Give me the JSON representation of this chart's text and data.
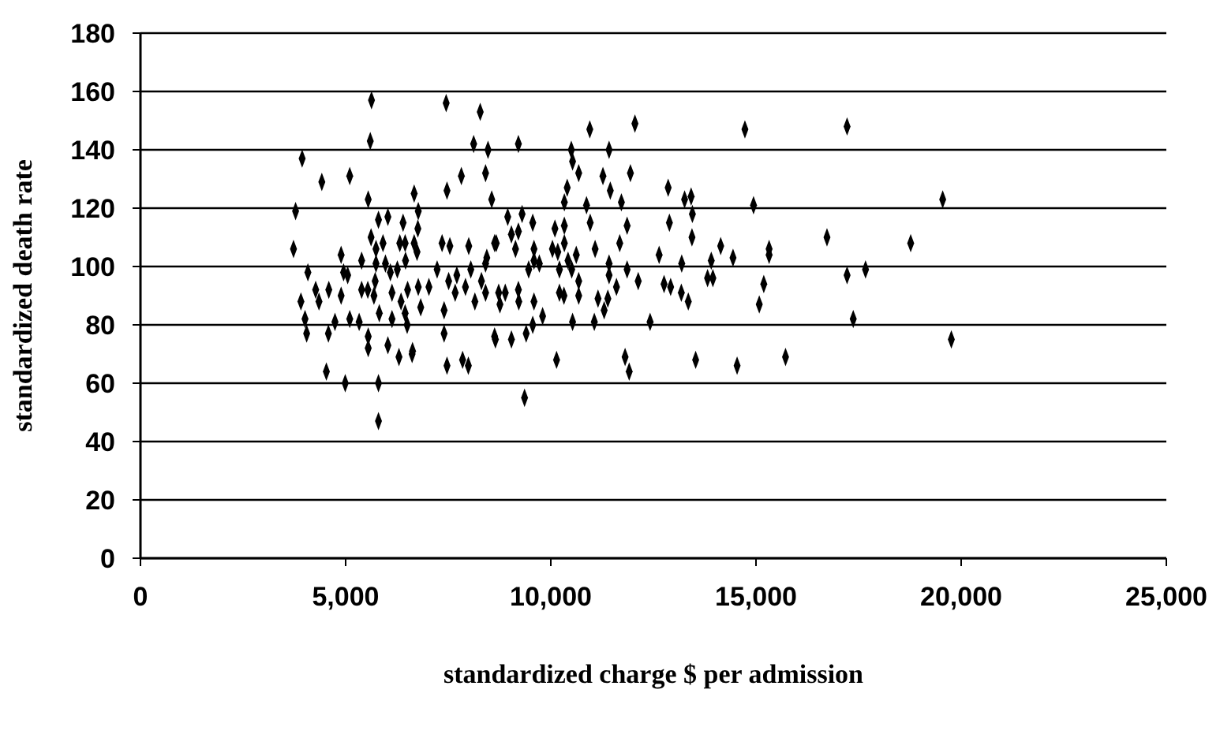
{
  "chart_data": {
    "type": "scatter",
    "xlabel": "standardized charge $ per admission",
    "ylabel": "standardized death rate",
    "xlim": [
      0,
      25000
    ],
    "ylim": [
      0,
      180
    ],
    "xticks": [
      0,
      {
        "value": 5000,
        "label": "5,000"
      },
      {
        "value": 10000,
        "label": "10,000"
      },
      {
        "value": 15000,
        "label": "15,000"
      },
      {
        "value": 20000,
        "label": "20,000"
      },
      {
        "value": 25000,
        "label": "25,000"
      }
    ],
    "yticks": [
      0,
      20,
      40,
      60,
      80,
      100,
      120,
      140,
      160,
      180
    ],
    "grid": "y",
    "marker": "diamond",
    "series": [
      {
        "color": "#000000",
        "x": [
          5630,
          7450,
          8280,
          5600,
          3940,
          8120,
          8470,
          4420,
          5100,
          7470,
          7820,
          8410,
          5550,
          6670,
          8560,
          3780,
          6770,
          5800,
          6030,
          6400,
          6760,
          3730,
          5620,
          5740,
          5910,
          6320,
          6450,
          6670,
          6740,
          7350,
          7540,
          8000,
          8630,
          4890,
          5390,
          5740,
          5970,
          6260,
          6460,
          7230,
          8050,
          8410,
          4080,
          4950,
          5050,
          6090,
          7710,
          7510,
          4270,
          4590,
          5390,
          5540,
          5720,
          6130,
          6510,
          6770,
          7030,
          7920,
          8310,
          3910,
          4350,
          4890,
          5690,
          6350,
          6830,
          7670,
          8150,
          8410,
          4010,
          4740,
          5100,
          5330,
          5820,
          6130,
          6450,
          6500,
          7400,
          4050,
          4580,
          5550,
          6030,
          6300,
          6620,
          6630,
          7400,
          7470,
          7850,
          7990,
          8630,
          5550,
          4530,
          4990,
          5800,
          5800,
          9210,
          10950,
          12050,
          14730,
          10500,
          11420,
          10530,
          10680,
          11270,
          11940,
          10400,
          11450,
          12860,
          10330,
          10870,
          11720,
          13260,
          13420,
          14940,
          8950,
          9300,
          9560,
          10960,
          11860,
          12890,
          13450,
          8670,
          9040,
          9210,
          10100,
          10330,
          13440,
          16730,
          9140,
          9590,
          10040,
          10330,
          11080,
          11680,
          14140,
          15320,
          15320,
          12640,
          14440,
          13910,
          9590,
          9720,
          10170,
          10420,
          10620,
          11420,
          13190,
          8440,
          9460,
          10210,
          10510,
          11420,
          11860,
          10680,
          12130,
          13820,
          13950,
          11600,
          12760,
          12920,
          15190,
          8730,
          8890,
          9210,
          10210,
          10320,
          10680,
          11150,
          11390,
          8760,
          9220,
          9590,
          13180,
          13350,
          15080,
          11300,
          9800,
          9560,
          10530,
          11060,
          12420,
          9400,
          8650,
          9040,
          10140,
          11810,
          11910,
          13530,
          14540,
          15720,
          9360,
          17220,
          19550,
          18770,
          17220,
          17670,
          17370,
          19760
        ],
        "values": [
          157,
          156,
          153,
          143,
          137,
          142,
          140,
          129,
          131,
          126,
          131,
          132,
          123,
          125,
          123,
          119,
          119,
          116,
          117,
          115,
          113,
          106,
          110,
          106,
          108,
          108,
          108,
          108,
          105,
          108,
          107,
          107,
          108,
          104,
          102,
          101,
          101,
          99,
          102,
          99,
          99,
          101,
          98,
          98,
          97,
          98,
          97,
          95,
          92,
          92,
          92,
          92,
          95,
          91,
          92,
          93,
          93,
          93,
          95,
          88,
          88,
          90,
          90,
          88,
          86,
          91,
          88,
          91,
          82,
          81,
          82,
          81,
          84,
          82,
          84,
          80,
          85,
          77,
          77,
          76,
          73,
          69,
          70,
          71,
          77,
          66,
          68,
          66,
          76,
          72,
          64,
          60,
          60,
          47,
          142,
          147,
          149,
          147,
          140,
          140,
          136,
          132,
          131,
          132,
          127,
          126,
          127,
          122,
          121,
          122,
          123,
          124,
          121,
          117,
          118,
          115,
          115,
          114,
          115,
          118,
          108,
          111,
          112,
          113,
          114,
          110,
          110,
          106,
          106,
          106,
          108,
          106,
          108,
          107,
          106,
          104,
          104,
          103,
          102,
          102,
          101,
          105,
          102,
          104,
          101,
          101,
          103,
          99,
          99,
          99,
          97,
          99,
          95,
          95,
          96,
          96,
          93,
          94,
          93,
          94,
          91,
          91,
          92,
          91,
          90,
          90,
          89,
          89,
          87,
          88,
          88,
          91,
          88,
          87,
          85,
          83,
          80,
          81,
          81,
          81,
          77,
          75,
          75,
          68,
          69,
          64,
          68,
          66,
          69,
          55,
          148,
          123,
          108,
          97,
          99,
          82,
          75
        ]
      }
    ]
  }
}
